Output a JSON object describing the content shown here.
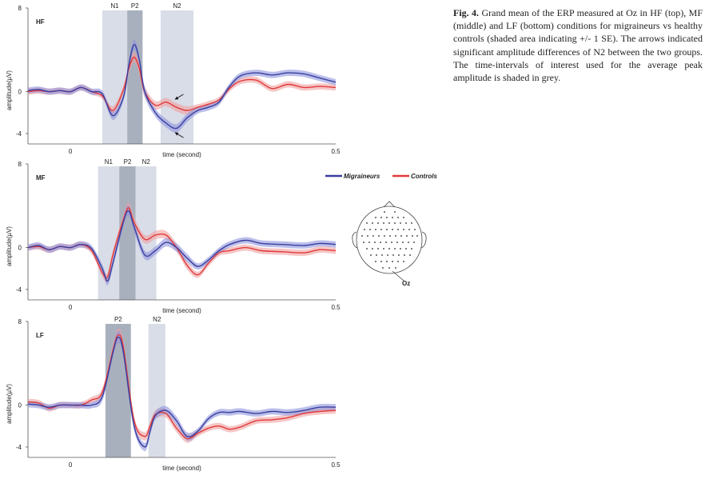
{
  "caption": {
    "label": "Fig. 4.",
    "text": "Grand mean of the ERP measured at Oz in HF (top), MF (middle) and LF (bottom) conditions for migraineurs vs healthy controls (shaded area indicating +/- 1 SE). The arrows indicated significant amplitude differences of N2 between the two groups. The time-intervals of interest used for the average peak amplitude is shaded in grey."
  },
  "legend": {
    "entries": [
      {
        "name": "Migraineurs",
        "color": "#3a3fa0"
      },
      {
        "name": "Controls",
        "color": "#e03a3a"
      }
    ]
  },
  "head": {
    "electrode_label": "Oz"
  },
  "colors": {
    "migraineurs": "#3a3fa0",
    "migraineurs_band": "#8e94dc",
    "controls": "#e03a3a",
    "controls_band": "#f0a0a0",
    "window_light": "#d9dde8",
    "window_dark": "#a9b0bd"
  },
  "chart_data": [
    {
      "type": "line",
      "panel": "HF",
      "xlabel": "time (second)",
      "ylabel": "amplitude(µV)",
      "xticks": [
        {
          "v": 0,
          "label": "0"
        },
        {
          "v": 0.5,
          "label": "0.5"
        }
      ],
      "yticks": [
        {
          "v": 8,
          "label": "8"
        },
        {
          "v": 0,
          "label": "0"
        },
        {
          "v": -4,
          "label": "-4"
        }
      ],
      "xlim": [
        -0.08,
        0.5
      ],
      "ylim": [
        -5,
        8
      ],
      "windows": [
        {
          "label": "N1",
          "start": 0.06,
          "end": 0.107,
          "shade": "light"
        },
        {
          "label": "P2",
          "start": 0.107,
          "end": 0.136,
          "shade": "dark"
        },
        {
          "label": "N2",
          "start": 0.17,
          "end": 0.232,
          "shade": "light"
        }
      ],
      "arrows": true,
      "series": [
        {
          "name": "Migraineurs",
          "x": [
            -0.08,
            -0.06,
            -0.04,
            -0.02,
            0,
            0.02,
            0.04,
            0.06,
            0.08,
            0.1,
            0.11,
            0.12,
            0.13,
            0.14,
            0.16,
            0.18,
            0.2,
            0.22,
            0.24,
            0.26,
            0.28,
            0.3,
            0.32,
            0.35,
            0.38,
            0.41,
            0.44,
            0.47,
            0.5
          ],
          "y": [
            0.1,
            0.2,
            0,
            0.1,
            0,
            0.4,
            0,
            -0.2,
            -2.3,
            -0.5,
            2.5,
            4.5,
            3,
            0,
            -2,
            -3,
            -3.5,
            -2.5,
            -1.8,
            -1.5,
            -1,
            0.5,
            1.5,
            1.8,
            1.6,
            1.8,
            1.7,
            1.3,
            0.9
          ],
          "se": [
            0.3,
            0.3,
            0.3,
            0.3,
            0.3,
            0.3,
            0.3,
            0.3,
            0.4,
            0.4,
            0.5,
            0.5,
            0.5,
            0.5,
            0.4,
            0.4,
            0.4,
            0.4,
            0.3,
            0.3,
            0.3,
            0.3,
            0.3,
            0.3,
            0.3,
            0.3,
            0.3,
            0.3,
            0.3
          ]
        },
        {
          "name": "Controls",
          "x": [
            -0.08,
            -0.06,
            -0.04,
            -0.02,
            0,
            0.02,
            0.04,
            0.06,
            0.08,
            0.1,
            0.11,
            0.12,
            0.13,
            0.14,
            0.16,
            0.18,
            0.2,
            0.22,
            0.24,
            0.26,
            0.28,
            0.3,
            0.32,
            0.35,
            0.38,
            0.41,
            0.44,
            0.47,
            0.5
          ],
          "y": [
            0,
            0.1,
            0,
            0.1,
            0,
            0.4,
            0,
            -0.4,
            -1.8,
            0.2,
            2.2,
            3.3,
            2.2,
            0,
            -1.3,
            -1,
            -1.5,
            -1.8,
            -1.5,
            -1.2,
            -0.8,
            0.3,
            1,
            1.1,
            0.3,
            0.7,
            0.4,
            0.5,
            0.4
          ],
          "se": [
            0.3,
            0.3,
            0.3,
            0.3,
            0.3,
            0.3,
            0.3,
            0.3,
            0.4,
            0.4,
            0.5,
            0.5,
            0.5,
            0.5,
            0.4,
            0.4,
            0.4,
            0.4,
            0.3,
            0.3,
            0.3,
            0.3,
            0.3,
            0.3,
            0.3,
            0.3,
            0.3,
            0.3,
            0.3
          ]
        }
      ]
    },
    {
      "type": "line",
      "panel": "MF",
      "xlabel": "time (second)",
      "ylabel": "amplitude(µV)",
      "xticks": [
        {
          "v": 0,
          "label": "0"
        },
        {
          "v": 0.5,
          "label": "0.5"
        }
      ],
      "yticks": [
        {
          "v": 8,
          "label": "8"
        },
        {
          "v": 0,
          "label": "0"
        },
        {
          "v": -4,
          "label": "-4"
        }
      ],
      "xlim": [
        -0.08,
        0.5
      ],
      "ylim": [
        -5,
        8
      ],
      "windows": [
        {
          "label": "N1",
          "start": 0.052,
          "end": 0.092,
          "shade": "light"
        },
        {
          "label": "P2",
          "start": 0.092,
          "end": 0.123,
          "shade": "dark"
        },
        {
          "label": "N2",
          "start": 0.123,
          "end": 0.162,
          "shade": "light"
        }
      ],
      "arrows": false,
      "series": [
        {
          "name": "Migraineurs",
          "x": [
            -0.08,
            -0.06,
            -0.04,
            -0.02,
            0,
            0.02,
            0.04,
            0.06,
            0.07,
            0.08,
            0.1,
            0.11,
            0.12,
            0.14,
            0.16,
            0.18,
            0.2,
            0.22,
            0.24,
            0.26,
            0.28,
            0.3,
            0.33,
            0.36,
            0.4,
            0.44,
            0.47,
            0.5
          ],
          "y": [
            0,
            0.2,
            -0.2,
            0.1,
            0,
            0.3,
            -0.1,
            -2,
            -3.2,
            -1.5,
            2.5,
            3.5,
            2,
            -0.7,
            -0.3,
            0.5,
            0,
            -1,
            -1.8,
            -1.2,
            -0.3,
            0.3,
            0.7,
            0.4,
            0.3,
            0.2,
            0.4,
            0.3
          ],
          "se": [
            0.3,
            0.3,
            0.3,
            0.3,
            0.3,
            0.3,
            0.3,
            0.4,
            0.4,
            0.4,
            0.5,
            0.5,
            0.5,
            0.4,
            0.4,
            0.4,
            0.4,
            0.4,
            0.3,
            0.3,
            0.3,
            0.3,
            0.3,
            0.3,
            0.3,
            0.3,
            0.3,
            0.3
          ]
        },
        {
          "name": "Controls",
          "x": [
            -0.08,
            -0.06,
            -0.04,
            -0.02,
            0,
            0.02,
            0.04,
            0.06,
            0.07,
            0.08,
            0.1,
            0.11,
            0.12,
            0.14,
            0.16,
            0.18,
            0.2,
            0.22,
            0.24,
            0.26,
            0.28,
            0.3,
            0.33,
            0.36,
            0.4,
            0.44,
            0.47,
            0.5
          ],
          "y": [
            0,
            0.1,
            -0.2,
            0.1,
            0,
            0.3,
            -0.3,
            -2.4,
            -2.8,
            -0.7,
            2.7,
            3.8,
            2.4,
            0.8,
            1.2,
            1.2,
            0,
            -1.7,
            -2.6,
            -1.5,
            -0.5,
            -0.3,
            0,
            -0.3,
            -0.4,
            -0.5,
            -0.2,
            -0.3
          ],
          "se": [
            0.3,
            0.3,
            0.3,
            0.3,
            0.3,
            0.3,
            0.3,
            0.4,
            0.4,
            0.4,
            0.5,
            0.5,
            0.5,
            0.4,
            0.4,
            0.4,
            0.4,
            0.4,
            0.3,
            0.3,
            0.3,
            0.3,
            0.3,
            0.3,
            0.3,
            0.3,
            0.3,
            0.3
          ]
        }
      ]
    },
    {
      "type": "line",
      "panel": "LF",
      "xlabel": "time (second)",
      "ylabel": "amplitude(µV)",
      "xticks": [
        {
          "v": 0,
          "label": "0"
        },
        {
          "v": 0.5,
          "label": "0.5"
        }
      ],
      "yticks": [
        {
          "v": 8,
          "label": "8"
        },
        {
          "v": 0,
          "label": "0"
        },
        {
          "v": -4,
          "label": "-4"
        }
      ],
      "xlim": [
        -0.08,
        0.5
      ],
      "ylim": [
        -5,
        8
      ],
      "windows": [
        {
          "label": "P2",
          "start": 0.066,
          "end": 0.114,
          "shade": "dark"
        },
        {
          "label": "N2",
          "start": 0.147,
          "end": 0.179,
          "shade": "light"
        }
      ],
      "arrows": false,
      "series": [
        {
          "name": "Migraineurs",
          "x": [
            -0.08,
            -0.06,
            -0.04,
            -0.02,
            0,
            0.02,
            0.04,
            0.06,
            0.08,
            0.09,
            0.1,
            0.12,
            0.14,
            0.15,
            0.16,
            0.18,
            0.2,
            0.22,
            0.24,
            0.26,
            0.28,
            0.3,
            0.32,
            0.35,
            0.38,
            0.41,
            0.44,
            0.47,
            0.5
          ],
          "y": [
            0.1,
            0,
            -0.2,
            0,
            0,
            0,
            0,
            0.8,
            5,
            6.5,
            5,
            -2,
            -4,
            -2.5,
            -1,
            -0.5,
            -1.5,
            -3,
            -2.5,
            -1.3,
            -0.7,
            -0.7,
            -0.6,
            -0.8,
            -0.6,
            -0.7,
            -0.5,
            -0.2,
            -0.2
          ],
          "se": [
            0.3,
            0.3,
            0.3,
            0.3,
            0.3,
            0.3,
            0.3,
            0.4,
            0.5,
            0.6,
            0.5,
            0.4,
            0.4,
            0.4,
            0.4,
            0.4,
            0.4,
            0.4,
            0.3,
            0.3,
            0.3,
            0.3,
            0.3,
            0.3,
            0.3,
            0.3,
            0.3,
            0.3,
            0.3
          ]
        },
        {
          "name": "Controls",
          "x": [
            -0.08,
            -0.06,
            -0.04,
            -0.02,
            0,
            0.02,
            0.04,
            0.06,
            0.08,
            0.09,
            0.1,
            0.12,
            0.14,
            0.15,
            0.16,
            0.18,
            0.2,
            0.22,
            0.24,
            0.26,
            0.28,
            0.3,
            0.32,
            0.35,
            0.38,
            0.41,
            0.44,
            0.47,
            0.5
          ],
          "y": [
            0.3,
            0.2,
            -0.3,
            0,
            0,
            0,
            0.5,
            1.2,
            5.2,
            6.7,
            5.5,
            -1.5,
            -3,
            -2,
            -0.9,
            -0.8,
            -2.2,
            -3.2,
            -2.7,
            -2.2,
            -2,
            -2.3,
            -2.1,
            -1.5,
            -1.4,
            -1.2,
            -0.8,
            -0.6,
            -0.5
          ],
          "se": [
            0.3,
            0.3,
            0.3,
            0.3,
            0.3,
            0.3,
            0.3,
            0.4,
            0.5,
            0.6,
            0.5,
            0.4,
            0.4,
            0.4,
            0.4,
            0.4,
            0.4,
            0.4,
            0.3,
            0.3,
            0.3,
            0.3,
            0.3,
            0.3,
            0.3,
            0.3,
            0.3,
            0.3,
            0.3
          ]
        }
      ]
    }
  ]
}
